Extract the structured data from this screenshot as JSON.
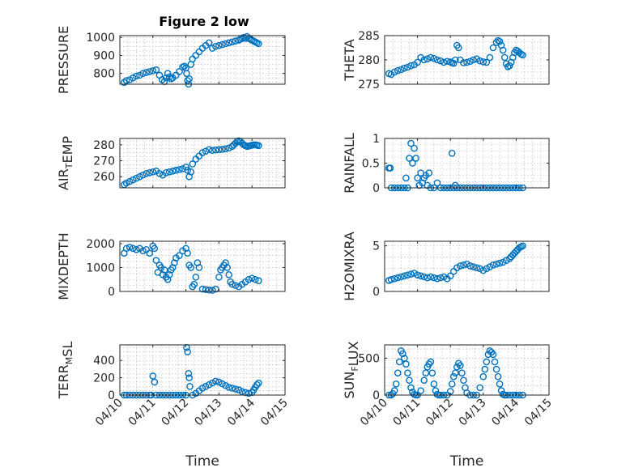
{
  "figure": {
    "title": "Figure 2 low",
    "marker_color": "#0072bd"
  },
  "chart_data": [
    {
      "type": "scatter",
      "position": "row1-left",
      "ylabel": "PRESSURE",
      "ylim": [
        740,
        1010
      ],
      "yticks": [
        800,
        900,
        1000
      ],
      "show_xticklabels": false,
      "xlabel": "",
      "x": [
        0.13,
        0.2,
        0.3,
        0.4,
        0.5,
        0.6,
        0.7,
        0.8,
        0.9,
        1.0,
        1.1,
        1.2,
        1.28,
        1.35,
        1.4,
        1.45,
        1.5,
        1.55,
        1.6,
        1.7,
        1.8,
        1.9,
        1.95,
        2.0,
        2.02,
        2.05,
        2.08,
        2.1,
        2.15,
        2.2,
        2.3,
        2.4,
        2.5,
        2.6,
        2.7,
        2.8,
        2.9,
        3.0,
        3.1,
        3.2,
        3.3,
        3.4,
        3.5,
        3.6,
        3.65,
        3.7,
        3.75,
        3.8,
        3.85,
        3.9,
        3.95,
        4.0,
        4.05,
        4.1,
        4.15,
        4.2
      ],
      "y": [
        750,
        760,
        765,
        775,
        785,
        790,
        800,
        805,
        810,
        815,
        820,
        790,
        765,
        755,
        775,
        800,
        780,
        770,
        775,
        790,
        810,
        835,
        840,
        830,
        800,
        760,
        740,
        770,
        850,
        880,
        900,
        920,
        940,
        955,
        970,
        940,
        950,
        955,
        960,
        965,
        970,
        975,
        980,
        985,
        990,
        995,
        1000,
        995,
        1005,
        995,
        990,
        985,
        980,
        975,
        970,
        965
      ]
    },
    {
      "type": "scatter",
      "position": "row1-right",
      "ylabel": "THETA",
      "ylim": [
        275,
        285
      ],
      "yticks": [
        275,
        280,
        285
      ],
      "show_xticklabels": false,
      "xlabel": "",
      "x": [
        0.13,
        0.2,
        0.3,
        0.4,
        0.5,
        0.6,
        0.7,
        0.8,
        0.9,
        1.0,
        1.1,
        1.2,
        1.3,
        1.4,
        1.5,
        1.6,
        1.7,
        1.8,
        1.9,
        2.0,
        2.05,
        2.1,
        2.15,
        2.2,
        2.25,
        2.3,
        2.4,
        2.5,
        2.6,
        2.7,
        2.8,
        2.9,
        3.0,
        3.1,
        3.2,
        3.3,
        3.4,
        3.45,
        3.5,
        3.55,
        3.6,
        3.65,
        3.7,
        3.75,
        3.8,
        3.85,
        3.9,
        3.95,
        4.0,
        4.05,
        4.1,
        4.15,
        4.2
      ],
      "y": [
        277.2,
        277.0,
        277.5,
        277.8,
        278.0,
        278.3,
        278.5,
        278.8,
        279.0,
        279.5,
        280.5,
        280.0,
        280.2,
        280.5,
        280.3,
        280.0,
        279.8,
        279.5,
        279.7,
        279.6,
        279.4,
        279.3,
        280.0,
        283.0,
        282.5,
        280.0,
        279.4,
        279.5,
        279.7,
        280.0,
        280.2,
        279.8,
        279.6,
        279.5,
        280.5,
        282.5,
        283.6,
        284.0,
        283.8,
        283.0,
        282.0,
        280.5,
        279.2,
        278.6,
        278.8,
        279.5,
        280.5,
        281.5,
        282.0,
        281.8,
        281.5,
        281.2,
        281.0
      ]
    },
    {
      "type": "scatter",
      "position": "row2-left",
      "ylabel": "AIR_TEMP",
      "ylim": [
        253,
        284
      ],
      "yticks": [
        260,
        270,
        280
      ],
      "show_xticklabels": false,
      "xlabel": "",
      "x": [
        0.13,
        0.2,
        0.3,
        0.4,
        0.5,
        0.6,
        0.7,
        0.8,
        0.9,
        1.0,
        1.1,
        1.2,
        1.3,
        1.4,
        1.5,
        1.6,
        1.7,
        1.8,
        1.9,
        2.0,
        2.05,
        2.1,
        2.15,
        2.2,
        2.3,
        2.4,
        2.5,
        2.6,
        2.7,
        2.8,
        2.9,
        3.0,
        3.1,
        3.2,
        3.3,
        3.4,
        3.45,
        3.5,
        3.55,
        3.6,
        3.65,
        3.7,
        3.75,
        3.8,
        3.85,
        3.9,
        3.95,
        4.0,
        4.05,
        4.1,
        4.15,
        4.2
      ],
      "y": [
        255,
        256,
        257,
        258,
        259,
        260,
        261,
        262,
        262.5,
        263,
        263.5,
        262,
        261,
        262.5,
        263,
        263.5,
        264,
        264.5,
        265,
        266,
        264,
        260,
        263,
        268,
        271,
        273,
        275,
        276,
        277,
        276.5,
        276.8,
        277,
        277.2,
        277.5,
        278,
        279,
        280,
        281,
        282,
        282.5,
        282,
        281,
        280,
        279.5,
        279,
        279.2,
        279.5,
        279.8,
        280,
        280,
        279.8,
        279.5
      ]
    },
    {
      "type": "scatter",
      "position": "row2-right",
      "ylabel": "RAINFALL",
      "ylim": [
        0,
        1
      ],
      "yticks": [
        0,
        0.5,
        1
      ],
      "show_xticklabels": false,
      "xlabel": "",
      "x": [
        0.13,
        0.17,
        0.2,
        0.3,
        0.4,
        0.5,
        0.6,
        0.65,
        0.7,
        0.75,
        0.8,
        0.85,
        0.9,
        0.95,
        1.0,
        1.05,
        1.1,
        1.15,
        1.2,
        1.25,
        1.3,
        1.35,
        1.4,
        1.5,
        1.6,
        1.7,
        1.8,
        1.9,
        2.0,
        2.05,
        2.1,
        2.15,
        2.2,
        2.3,
        2.4,
        2.5,
        2.6,
        2.7,
        2.8,
        2.9,
        3.0,
        3.1,
        3.2,
        3.3,
        3.4,
        3.5,
        3.6,
        3.7,
        3.8,
        3.9,
        4.0,
        4.1,
        4.2
      ],
      "y": [
        0.4,
        0.4,
        0,
        0,
        0,
        0,
        0,
        0.2,
        0,
        0.6,
        0.9,
        0.5,
        0.8,
        0.6,
        0.2,
        0.05,
        0.3,
        0.1,
        0.2,
        0.25,
        0.05,
        0.3,
        0,
        0,
        0.1,
        0,
        0,
        0,
        0,
        0.7,
        0,
        0.05,
        0,
        0,
        0,
        0,
        0,
        0,
        0,
        0,
        0,
        0,
        0,
        0,
        0,
        0,
        0,
        0,
        0,
        0,
        0,
        0,
        0
      ]
    },
    {
      "type": "scatter",
      "position": "row3-left",
      "ylabel": "MIXDEPTH",
      "ylim": [
        0,
        2100
      ],
      "yticks": [
        0,
        1000,
        2000
      ],
      "show_xticklabels": false,
      "xlabel": "",
      "x": [
        0.13,
        0.2,
        0.3,
        0.4,
        0.5,
        0.6,
        0.7,
        0.8,
        0.9,
        1.0,
        1.05,
        1.1,
        1.15,
        1.2,
        1.25,
        1.3,
        1.35,
        1.4,
        1.45,
        1.5,
        1.55,
        1.6,
        1.65,
        1.7,
        1.8,
        1.9,
        2.0,
        2.05,
        2.1,
        2.15,
        2.2,
        2.25,
        2.3,
        2.35,
        2.4,
        2.5,
        2.6,
        2.7,
        2.8,
        2.9,
        3.0,
        3.05,
        3.1,
        3.15,
        3.2,
        3.25,
        3.3,
        3.35,
        3.4,
        3.5,
        3.6,
        3.7,
        3.8,
        3.9,
        4.0,
        4.1,
        4.2
      ],
      "y": [
        1600,
        1800,
        1850,
        1800,
        1750,
        1800,
        1700,
        1750,
        1600,
        1900,
        1800,
        1300,
        800,
        1100,
        1000,
        700,
        900,
        600,
        500,
        700,
        900,
        1000,
        1200,
        1400,
        1500,
        1700,
        1800,
        1600,
        1100,
        1000,
        200,
        300,
        600,
        1200,
        1000,
        100,
        80,
        60,
        50,
        100,
        600,
        900,
        1000,
        1100,
        1200,
        1000,
        700,
        400,
        300,
        250,
        200,
        300,
        400,
        500,
        550,
        500,
        450
      ]
    },
    {
      "type": "scatter",
      "position": "row3-right",
      "ylabel": "H2OMIXRA",
      "ylim": [
        0,
        5.5
      ],
      "yticks": [
        0,
        5
      ],
      "show_xticklabels": false,
      "xlabel": "",
      "x": [
        0.13,
        0.2,
        0.3,
        0.4,
        0.5,
        0.6,
        0.7,
        0.8,
        0.9,
        1.0,
        1.1,
        1.2,
        1.3,
        1.4,
        1.5,
        1.6,
        1.7,
        1.8,
        1.9,
        2.0,
        2.1,
        2.2,
        2.3,
        2.4,
        2.5,
        2.6,
        2.7,
        2.8,
        2.9,
        3.0,
        3.1,
        3.2,
        3.3,
        3.4,
        3.5,
        3.6,
        3.7,
        3.8,
        3.85,
        3.9,
        3.95,
        4.0,
        4.05,
        4.1,
        4.15,
        4.2
      ],
      "y": [
        1.2,
        1.3,
        1.4,
        1.5,
        1.6,
        1.7,
        1.8,
        1.9,
        2.0,
        1.8,
        1.7,
        1.6,
        1.5,
        1.6,
        1.5,
        1.4,
        1.5,
        1.6,
        1.4,
        1.7,
        2.2,
        2.6,
        2.8,
        2.9,
        3.0,
        2.8,
        2.7,
        2.6,
        2.5,
        2.3,
        2.5,
        2.7,
        2.9,
        3.0,
        3.1,
        3.2,
        3.4,
        3.6,
        3.8,
        4.0,
        4.2,
        4.4,
        4.6,
        4.8,
        4.9,
        5.0
      ]
    },
    {
      "type": "scatter",
      "position": "row4-left",
      "ylabel": "TERR_MSL",
      "ylim": [
        0,
        580
      ],
      "yticks": [
        0,
        200,
        400
      ],
      "show_xticklabels": true,
      "xlabel": "Time",
      "x": [
        0.13,
        0.2,
        0.3,
        0.4,
        0.5,
        0.6,
        0.7,
        0.8,
        0.9,
        0.95,
        1.0,
        1.05,
        1.1,
        1.2,
        1.3,
        1.4,
        1.5,
        1.6,
        1.7,
        1.8,
        1.9,
        2.0,
        2.02,
        2.05,
        2.08,
        2.1,
        2.12,
        2.2,
        2.3,
        2.4,
        2.5,
        2.6,
        2.7,
        2.8,
        2.9,
        3.0,
        3.1,
        3.2,
        3.3,
        3.4,
        3.5,
        3.6,
        3.7,
        3.8,
        3.9,
        4.0,
        4.05,
        4.1,
        4.15,
        4.2
      ],
      "y": [
        0,
        0,
        0,
        0,
        0,
        0,
        0,
        0,
        0,
        0,
        220,
        150,
        0,
        0,
        0,
        0,
        0,
        0,
        0,
        0,
        0,
        0,
        550,
        500,
        250,
        200,
        100,
        0,
        20,
        50,
        80,
        100,
        120,
        140,
        160,
        150,
        130,
        110,
        90,
        80,
        70,
        60,
        40,
        30,
        20,
        30,
        60,
        90,
        120,
        140
      ]
    },
    {
      "type": "scatter",
      "position": "row4-right",
      "ylabel": "SUN_FLUX",
      "ylim": [
        0,
        680
      ],
      "yticks": [
        0,
        500
      ],
      "show_xticklabels": true,
      "xlabel": "Time",
      "x": [
        0.13,
        0.2,
        0.25,
        0.3,
        0.35,
        0.4,
        0.45,
        0.5,
        0.55,
        0.6,
        0.65,
        0.7,
        0.75,
        0.8,
        0.85,
        0.9,
        0.95,
        1.0,
        1.1,
        1.2,
        1.25,
        1.3,
        1.35,
        1.4,
        1.45,
        1.5,
        1.55,
        1.6,
        1.65,
        1.7,
        1.8,
        1.9,
        2.0,
        2.05,
        2.1,
        2.15,
        2.2,
        2.25,
        2.3,
        2.35,
        2.4,
        2.45,
        2.5,
        2.6,
        2.7,
        2.8,
        2.9,
        3.0,
        3.05,
        3.1,
        3.15,
        3.2,
        3.25,
        3.3,
        3.35,
        3.4,
        3.45,
        3.5,
        3.55,
        3.6,
        3.65,
        3.7,
        3.8,
        3.9,
        4.0,
        4.1,
        4.2
      ],
      "y": [
        0,
        0,
        20,
        60,
        150,
        300,
        450,
        600,
        560,
        500,
        420,
        300,
        200,
        100,
        40,
        10,
        0,
        0,
        60,
        200,
        300,
        380,
        420,
        450,
        300,
        150,
        60,
        10,
        0,
        0,
        0,
        0,
        50,
        150,
        250,
        300,
        380,
        430,
        400,
        300,
        200,
        100,
        30,
        0,
        0,
        0,
        100,
        250,
        350,
        450,
        550,
        600,
        580,
        550,
        450,
        350,
        250,
        150,
        60,
        10,
        0,
        0,
        0,
        0,
        0,
        0,
        0
      ]
    }
  ],
  "x_axis": {
    "unit": "day",
    "xlim": [
      0,
      5
    ],
    "ticks": [
      0,
      1,
      2,
      3,
      4,
      5
    ],
    "tick_labels": [
      "04/10",
      "04/11",
      "04/12",
      "04/13",
      "04/14",
      "04/15"
    ],
    "grid": true,
    "minor_grid": true
  }
}
